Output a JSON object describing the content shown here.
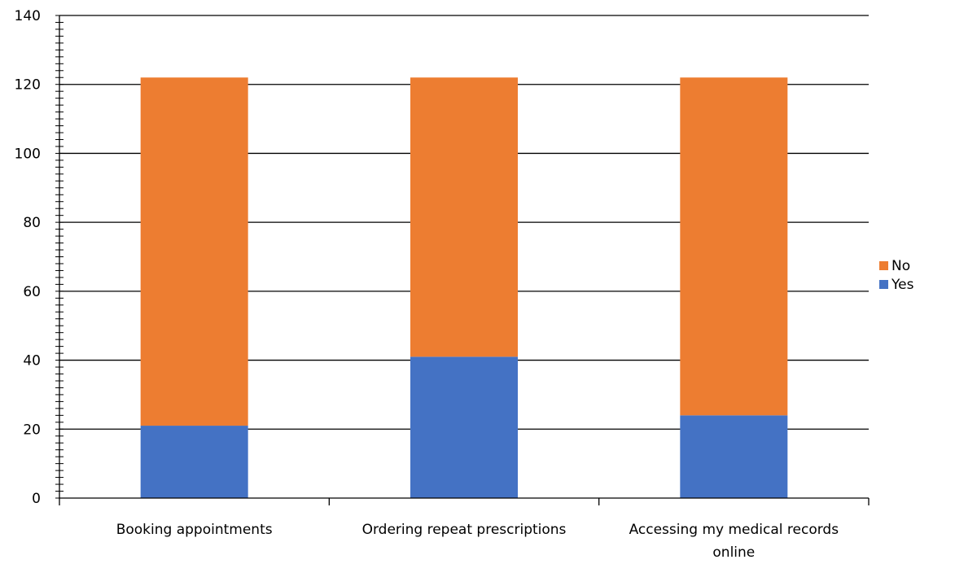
{
  "chart_data": {
    "type": "bar",
    "stacked": true,
    "categories": [
      [
        "Booking appointments"
      ],
      [
        "Ordering repeat prescriptions"
      ],
      [
        "Accessing my medical records",
        "online"
      ]
    ],
    "series": [
      {
        "name": "Yes",
        "values": [
          21,
          41,
          24
        ],
        "color": "#4472C4"
      },
      {
        "name": "No",
        "values": [
          101,
          81,
          98
        ],
        "color": "#ED7D31"
      }
    ],
    "ylim": [
      0,
      140
    ],
    "yticks": [
      "0",
      "20",
      "40",
      "60",
      "80",
      "100",
      "120",
      "140"
    ],
    "title": "",
    "xlabel": "",
    "ylabel": "",
    "grid": true,
    "legend_position": "right",
    "legend_order": [
      "No",
      "Yes"
    ]
  }
}
